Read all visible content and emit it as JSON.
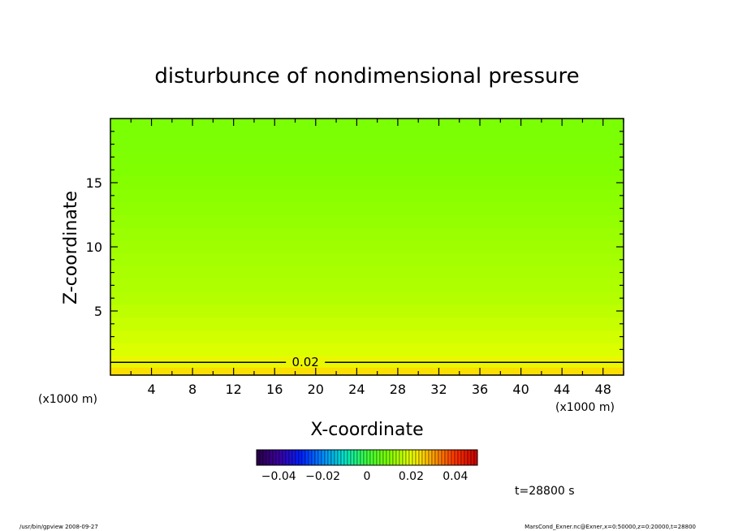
{
  "title": "disturbunce of nondimensional pressure",
  "chart_data": {
    "type": "heatmap",
    "title": "disturbunce of nondimensional pressure",
    "xlabel": "X-coordinate",
    "ylabel": "Z-coordinate",
    "x_unit_label": "(x1000 m)",
    "y_unit_label": "(x1000 m)",
    "xlim": [
      0,
      50
    ],
    "ylim": [
      0,
      20
    ],
    "x_ticks": [
      4,
      8,
      12,
      16,
      20,
      24,
      28,
      32,
      36,
      40,
      44,
      48
    ],
    "y_ticks": [
      5,
      10,
      15
    ],
    "x_tick_labels": [
      "4",
      "8",
      "12",
      "16",
      "20",
      "24",
      "28",
      "32",
      "36",
      "40",
      "44",
      "48"
    ],
    "y_tick_labels": [
      "5",
      "10",
      "15"
    ],
    "field": {
      "z_levels": [
        0.25,
        1.0,
        2.0,
        3.0,
        4.0,
        5.0,
        6.0,
        7.0,
        8.0,
        9.0,
        10.0,
        11.0,
        12.0,
        13.0,
        14.0,
        15.0,
        16.0,
        17.0,
        18.0,
        19.0
      ],
      "values": [
        0.024,
        0.021,
        0.019,
        0.018,
        0.017,
        0.016,
        0.015,
        0.0145,
        0.014,
        0.0135,
        0.013,
        0.0125,
        0.012,
        0.0115,
        0.011,
        0.0105,
        0.01,
        0.0097,
        0.0094,
        0.0092
      ],
      "uniform_in_x": true
    },
    "contours": [
      {
        "level": 0.02,
        "label": "0.02",
        "z": 1.0,
        "label_x": 19
      }
    ],
    "colorbar": {
      "range": [
        -0.05,
        0.05
      ],
      "ticks": [
        -0.04,
        -0.02,
        0,
        0.02,
        0.04
      ],
      "tick_labels": [
        "−0.04",
        "−0.02",
        "0",
        "0.02",
        "0.04"
      ]
    },
    "grid": false
  },
  "time_label": "t=28800 s",
  "footer": {
    "left": "/usr/bin/gpview   2008-09-27",
    "right": "MarsCond_Exner.nc@Exner,x=0:50000,z=0:20000,t=28800"
  }
}
